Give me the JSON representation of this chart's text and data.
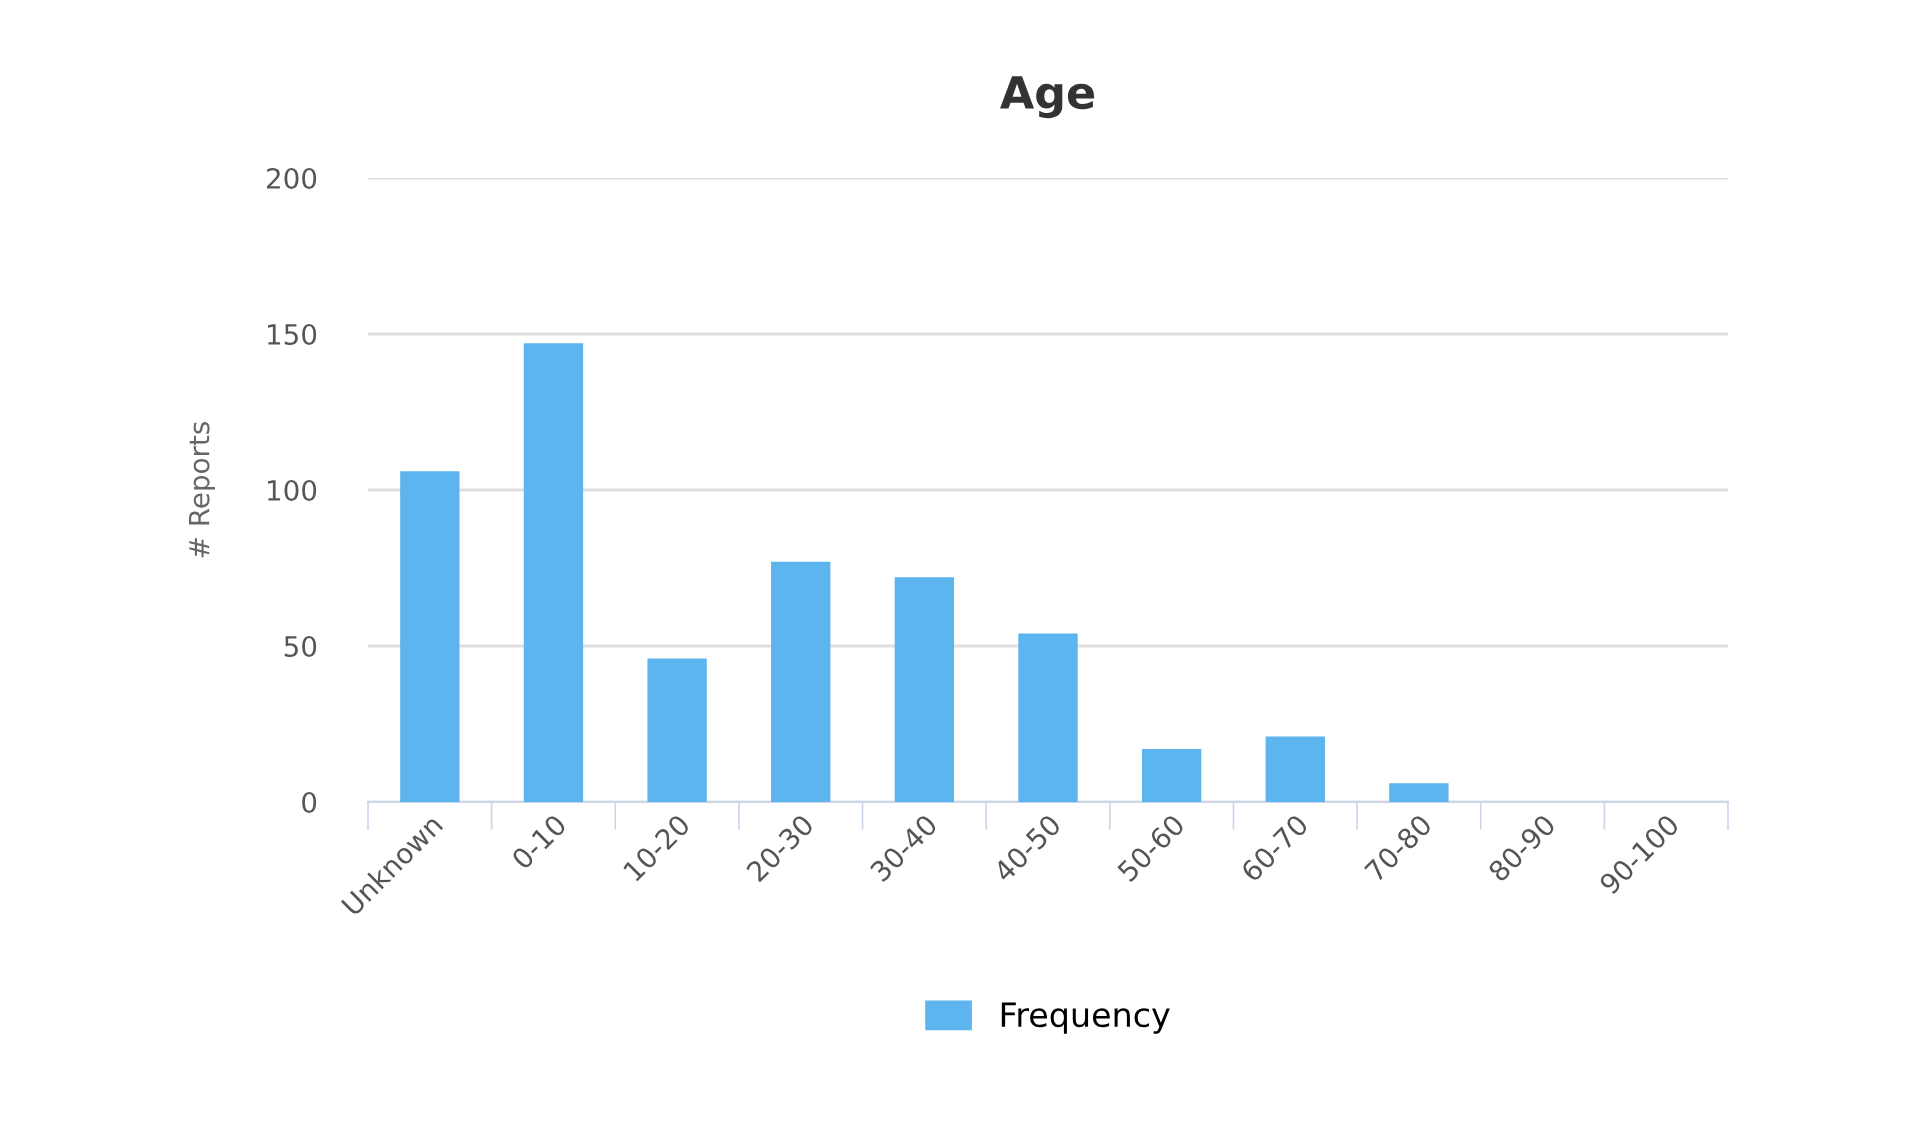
{
  "chart_data": {
    "type": "bar",
    "title": "Age",
    "ylabel": "# Reports",
    "categories": [
      "Unknown",
      "0-10",
      "10-20",
      "20-30",
      "30-40",
      "40-50",
      "50-60",
      "60-70",
      "70-80",
      "80-90",
      "90-100"
    ],
    "series": [
      {
        "name": "Frequency",
        "color": "#5cb5ee",
        "values": [
          106,
          147,
          46,
          77,
          72,
          54,
          17,
          21,
          6,
          0,
          0
        ]
      }
    ],
    "ylim": [
      0,
      200
    ],
    "yticks": [
      0,
      50,
      100,
      150,
      200
    ],
    "grid": "y",
    "legend": "bottom"
  }
}
